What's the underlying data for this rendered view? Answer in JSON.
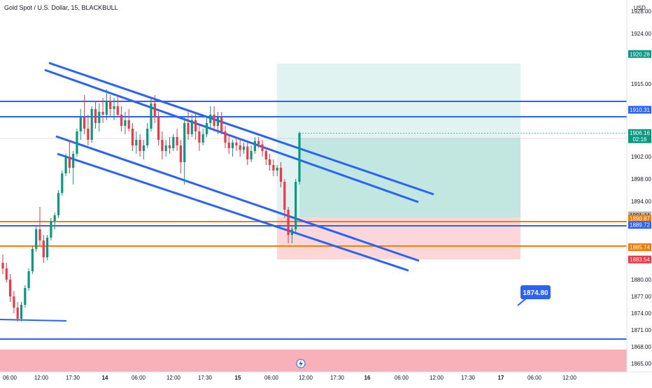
{
  "chart_data": {
    "type": "candlestick",
    "title": "Gold Spot / U.S. Dollar, 15, BLACKBULL",
    "currency": "USD",
    "y_range": [
      1863.5,
      1930.0
    ],
    "y_ticks": [
      "1928.00",
      "1924.00",
      "1920.28",
      "1915.00",
      "1910.31",
      "1906.16",
      "1902.00",
      "1898.00",
      "1894.00",
      "1891.44",
      "1889.72",
      "1883.54",
      "1880.00",
      "1877.00",
      "1874.00",
      "1871.00",
      "1868.00",
      "1865.00"
    ],
    "x_ticks": [
      "06:00",
      "12:00",
      "17:30",
      "14",
      "06:00",
      "12:00",
      "17:30",
      "15",
      "06:00",
      "12:00",
      "17:30",
      "16",
      "06:00",
      "12:00",
      "17:30",
      "17",
      "06:00",
      "12:00"
    ],
    "price_labels": [
      {
        "value": "1920.28",
        "color": "#089981"
      },
      {
        "value": "1910.31",
        "color": "#2962ff"
      },
      {
        "value": "1906.16",
        "sub": "02:16",
        "color": "#089981"
      },
      {
        "value": "1891.44",
        "color": "#b2b5be"
      },
      {
        "value": "1890.87",
        "color": "#f57c00"
      },
      {
        "value": "1889.72",
        "color": "#2962ff"
      },
      {
        "value": "1885.74",
        "color": "#f57c00"
      },
      {
        "value": "1883.54",
        "color": "#f23645"
      }
    ],
    "annotation": {
      "label": "1874.80",
      "color": "#2962ff"
    },
    "candles_ohlc": [
      [
        1883,
        1884.5,
        1881,
        1882
      ],
      [
        1882,
        1883,
        1879.5,
        1880
      ],
      [
        1880,
        1881,
        1876,
        1877
      ],
      [
        1877,
        1878,
        1874,
        1875
      ],
      [
        1875,
        1876,
        1872.5,
        1873
      ],
      [
        1873,
        1876,
        1872.5,
        1875.5
      ],
      [
        1875.5,
        1879,
        1875,
        1878.5
      ],
      [
        1878.5,
        1882,
        1878,
        1881.5
      ],
      [
        1881.5,
        1886,
        1881,
        1885.5
      ],
      [
        1885.5,
        1889.5,
        1885,
        1889
      ],
      [
        1889,
        1893,
        1886,
        1887
      ],
      [
        1887,
        1888,
        1883,
        1884
      ],
      [
        1884,
        1888,
        1883.5,
        1887.5
      ],
      [
        1887.5,
        1891,
        1887,
        1890.5
      ],
      [
        1890.5,
        1892,
        1889,
        1891.5
      ],
      [
        1891.5,
        1896,
        1891,
        1895.5
      ],
      [
        1895.5,
        1899.5,
        1895,
        1899
      ],
      [
        1899,
        1902.5,
        1898.5,
        1902
      ],
      [
        1902,
        1905,
        1899,
        1900
      ],
      [
        1900,
        1903,
        1897,
        1902.5
      ],
      [
        1902.5,
        1907,
        1902,
        1906.5
      ],
      [
        1906.5,
        1910.5,
        1905,
        1909
      ],
      [
        1909,
        1913,
        1906,
        1907
      ],
      [
        1907,
        1909.5,
        1904,
        1905
      ],
      [
        1905,
        1911,
        1904.5,
        1910.5
      ],
      [
        1910.5,
        1912,
        1907,
        1908
      ],
      [
        1908,
        1911.5,
        1906.5,
        1910
      ],
      [
        1910,
        1912.5,
        1908,
        1909.5
      ],
      [
        1909.5,
        1914,
        1908.5,
        1912
      ],
      [
        1912,
        1913,
        1909,
        1910.5
      ],
      [
        1910.5,
        1912.5,
        1908.5,
        1911
      ],
      [
        1911,
        1913,
        1909,
        1909.5
      ],
      [
        1909.5,
        1911,
        1906.5,
        1907.5
      ],
      [
        1907.5,
        1910,
        1906,
        1908.5
      ],
      [
        1908.5,
        1910.5,
        1906.5,
        1907
      ],
      [
        1907,
        1908,
        1903,
        1904
      ],
      [
        1904,
        1906.5,
        1902.5,
        1905
      ],
      [
        1905,
        1906,
        1902,
        1903
      ],
      [
        1903,
        1905,
        1901.5,
        1904
      ],
      [
        1904,
        1908,
        1903.5,
        1907
      ],
      [
        1907,
        1912.5,
        1906.5,
        1911.5
      ],
      [
        1911.5,
        1913,
        1908,
        1909
      ],
      [
        1909,
        1910,
        1904,
        1905
      ],
      [
        1905,
        1906.5,
        1901.5,
        1903
      ],
      [
        1903,
        1905,
        1902,
        1904
      ],
      [
        1904,
        1905.5,
        1902.5,
        1903.5
      ],
      [
        1903.5,
        1906,
        1903,
        1905.5
      ],
      [
        1905.5,
        1907,
        1903,
        1904
      ],
      [
        1904,
        1905,
        1899,
        1901
      ],
      [
        1901,
        1909,
        1897,
        1908
      ],
      [
        1908,
        1910,
        1905,
        1906
      ],
      [
        1906,
        1909.5,
        1905.5,
        1908.5
      ],
      [
        1908.5,
        1910,
        1905,
        1906.5
      ],
      [
        1906.5,
        1907.5,
        1903,
        1904.5
      ],
      [
        1904.5,
        1907,
        1904,
        1906
      ],
      [
        1906,
        1909,
        1905.5,
        1908
      ],
      [
        1908,
        1911,
        1907,
        1909.5
      ],
      [
        1909.5,
        1911,
        1906.5,
        1907.5
      ],
      [
        1907.5,
        1910,
        1906,
        1909
      ],
      [
        1909,
        1910,
        1906,
        1906.5
      ],
      [
        1906.5,
        1907.5,
        1903.5,
        1904.5
      ],
      [
        1904.5,
        1906,
        1902.5,
        1903.5
      ],
      [
        1903.5,
        1905,
        1902,
        1904.5
      ],
      [
        1904.5,
        1905.5,
        1903,
        1904
      ],
      [
        1904,
        1905,
        1902,
        1903.2
      ],
      [
        1903.2,
        1904.5,
        1902.5,
        1903.8
      ],
      [
        1903.8,
        1904.5,
        1900.5,
        1901.5
      ],
      [
        1901.5,
        1904,
        1901,
        1903
      ],
      [
        1903,
        1905.5,
        1902.5,
        1904.8
      ],
      [
        1904.8,
        1905.5,
        1903.5,
        1904.2
      ],
      [
        1904.2,
        1905,
        1902,
        1903
      ],
      [
        1903,
        1903.5,
        1900.5,
        1901.5
      ],
      [
        1901.5,
        1902.5,
        1899.5,
        1900.5
      ],
      [
        1900.5,
        1901.5,
        1898.5,
        1899.5
      ],
      [
        1899.5,
        1900.5,
        1898.5,
        1900
      ],
      [
        1900,
        1901,
        1896.5,
        1897.5
      ],
      [
        1897.5,
        1898,
        1891,
        1892.5
      ],
      [
        1892.5,
        1893,
        1886.5,
        1888
      ],
      [
        1888,
        1889.5,
        1886.5,
        1889
      ],
      [
        1889,
        1898,
        1888.5,
        1897.5
      ],
      [
        1897.5,
        1906.5,
        1897,
        1906.2
      ]
    ]
  }
}
